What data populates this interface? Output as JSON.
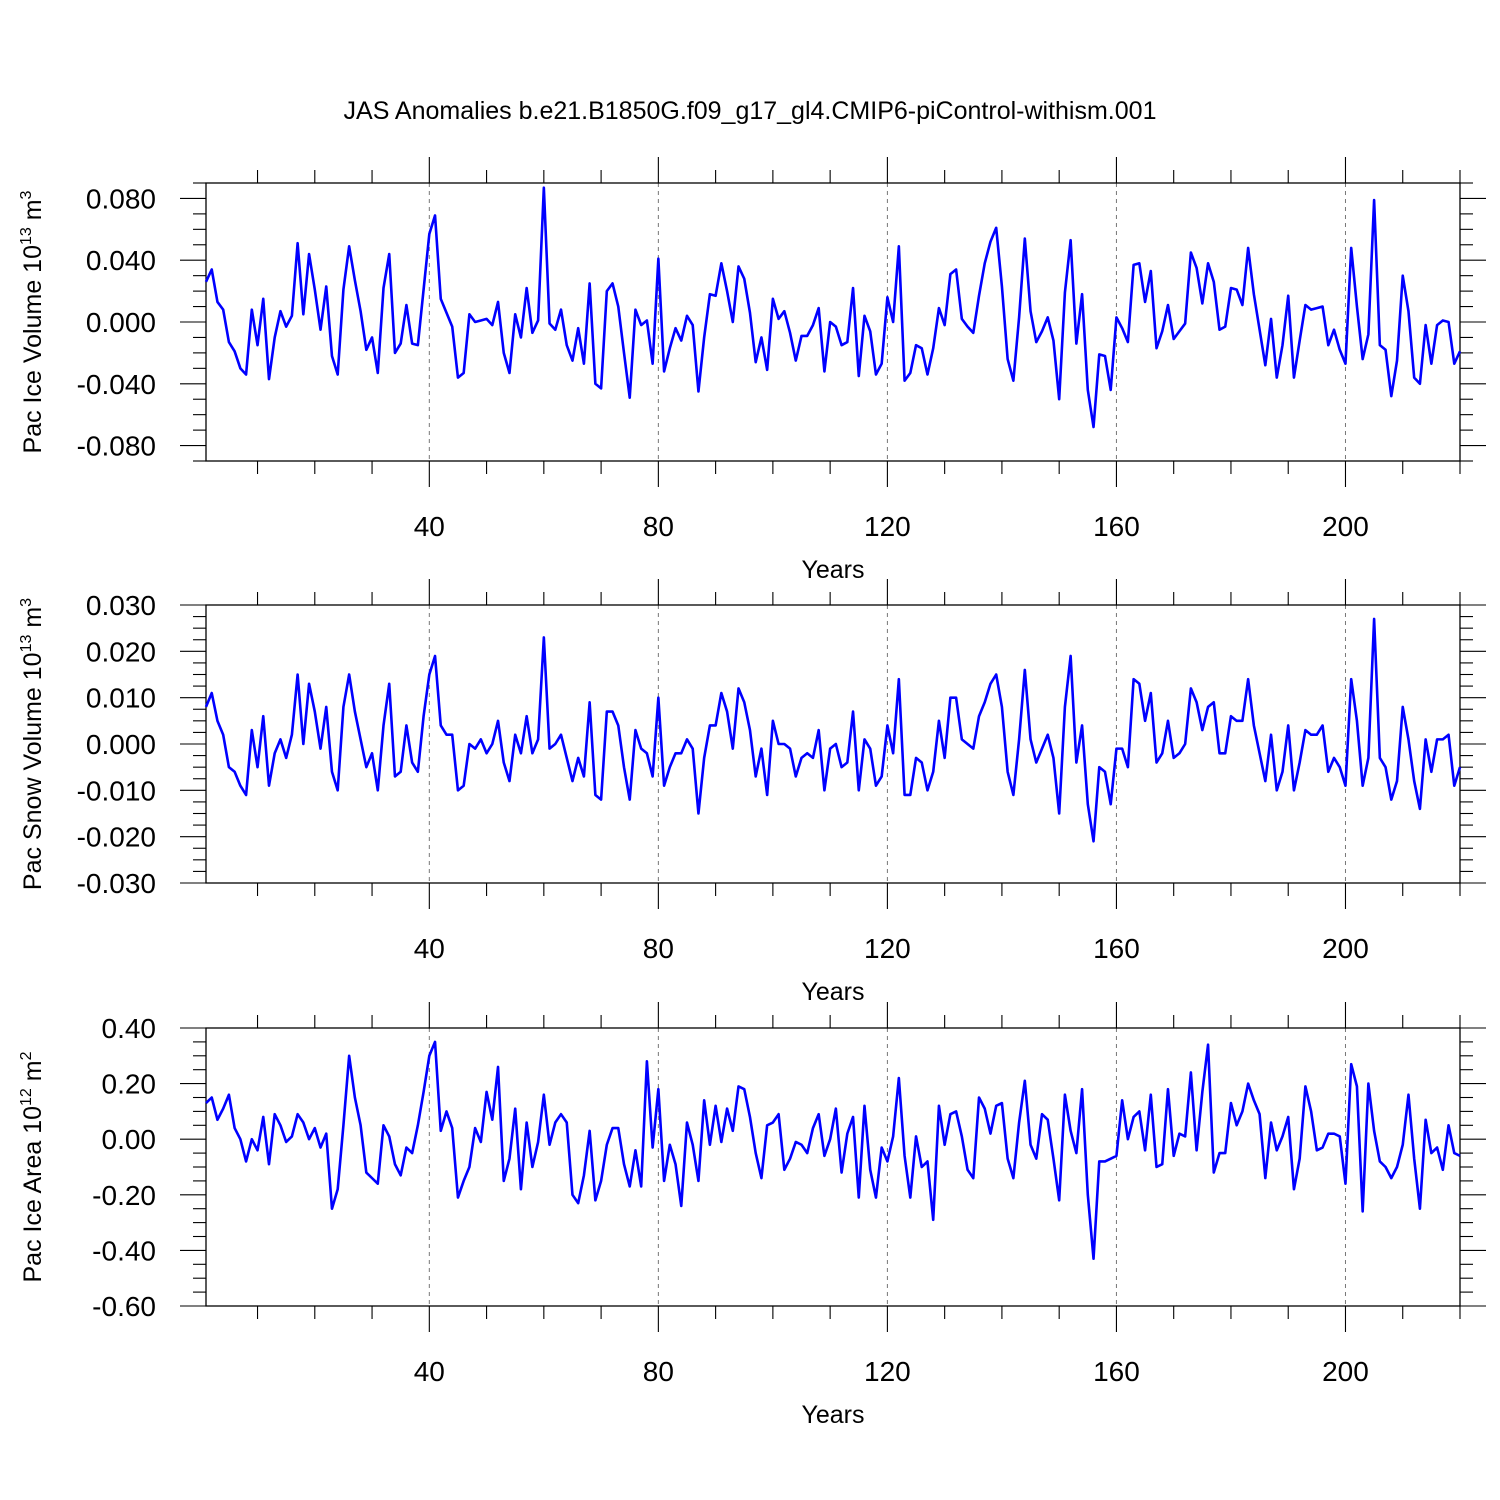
{
  "figure": {
    "title": "JAS Anomalies b.e21.B1850G.f09_g17_gl4.CMIP6-piControl-withism.001"
  },
  "chart_data": [
    {
      "type": "line",
      "title": "",
      "xlabel": "Years",
      "ylabel": {
        "base": "Pac Ice Volume 10",
        "exp": "13",
        "unit": " m",
        "unit_exp": "3"
      },
      "xlim": [
        1,
        220
      ],
      "ylim": [
        -0.09,
        0.09
      ],
      "xticks": [
        "40",
        "80",
        "120",
        "160",
        "200"
      ],
      "yticks": [
        "-0.080",
        "-0.040",
        "0.000",
        "0.040",
        "0.080"
      ],
      "grid": "dashed vertical at major x ticks",
      "color": "#0000ff",
      "series": [
        {
          "x_start": 1,
          "x_step": 1,
          "values": [
            0.026,
            0.034,
            0.013,
            0.008,
            -0.013,
            -0.019,
            -0.03,
            -0.034,
            0.008,
            -0.015,
            0.015,
            -0.037,
            -0.01,
            0.007,
            -0.003,
            0.004,
            0.051,
            0.005,
            0.044,
            0.021,
            -0.005,
            0.023,
            -0.022,
            -0.034,
            0.021,
            0.049,
            0.027,
            0.007,
            -0.018,
            -0.01,
            -0.033,
            0.022,
            0.044,
            -0.02,
            -0.014,
            0.011,
            -0.014,
            -0.015,
            0.021,
            0.057,
            0.069,
            0.015,
            0.006,
            -0.003,
            -0.036,
            -0.033,
            0.005,
            0.0,
            0.001,
            0.002,
            -0.002,
            0.013,
            -0.02,
            -0.033,
            0.005,
            -0.01,
            0.022,
            -0.007,
            0.001,
            0.087,
            -0.001,
            -0.005,
            0.008,
            -0.015,
            -0.025,
            -0.004,
            -0.027,
            0.025,
            -0.04,
            -0.043,
            0.02,
            0.025,
            0.01,
            -0.02,
            -0.049,
            0.008,
            -0.002,
            0.001,
            -0.027,
            0.041,
            -0.032,
            -0.017,
            -0.004,
            -0.012,
            0.004,
            -0.002,
            -0.045,
            -0.01,
            0.018,
            0.017,
            0.038,
            0.02,
            0.0,
            0.036,
            0.028,
            0.006,
            -0.026,
            -0.01,
            -0.031,
            0.015,
            0.002,
            0.007,
            -0.007,
            -0.025,
            -0.009,
            -0.009,
            -0.002,
            0.009,
            -0.032,
            0.0,
            -0.003,
            -0.015,
            -0.013,
            0.022,
            -0.035,
            0.004,
            -0.006,
            -0.034,
            -0.027,
            0.016,
            0.0,
            0.049,
            -0.038,
            -0.033,
            -0.015,
            -0.017,
            -0.034,
            -0.017,
            0.009,
            -0.002,
            0.031,
            0.034,
            0.002,
            -0.003,
            -0.007,
            0.017,
            0.038,
            0.052,
            0.061,
            0.023,
            -0.024,
            -0.038,
            0.003,
            0.054,
            0.007,
            -0.013,
            -0.006,
            0.003,
            -0.012,
            -0.05,
            0.019,
            0.053,
            -0.014,
            0.018,
            -0.044,
            -0.068,
            -0.021,
            -0.022,
            -0.044,
            0.003,
            -0.004,
            -0.013,
            0.037,
            0.038,
            0.013,
            0.033,
            -0.017,
            -0.006,
            0.011,
            -0.011,
            -0.006,
            -0.001,
            0.045,
            0.035,
            0.012,
            0.038,
            0.026,
            -0.005,
            -0.003,
            0.022,
            0.021,
            0.011,
            0.048,
            0.018,
            -0.005,
            -0.028,
            0.002,
            -0.036,
            -0.015,
            0.017,
            -0.036,
            -0.012,
            0.011,
            0.008,
            0.009,
            0.01,
            -0.015,
            -0.005,
            -0.018,
            -0.027,
            0.048,
            0.01,
            -0.024,
            -0.008,
            0.079,
            -0.015,
            -0.018,
            -0.048,
            -0.025,
            0.03,
            0.007,
            -0.036,
            -0.04,
            -0.002,
            -0.027,
            -0.002,
            0.001,
            0.0,
            -0.027,
            -0.019
          ]
        }
      ]
    },
    {
      "type": "line",
      "title": "",
      "xlabel": "Years",
      "ylabel": {
        "base": "Pac Snow Volume 10",
        "exp": "13",
        "unit": " m",
        "unit_exp": "3"
      },
      "xlim": [
        1,
        220
      ],
      "ylim": [
        -0.03,
        0.03
      ],
      "xticks": [
        "40",
        "80",
        "120",
        "160",
        "200"
      ],
      "yticks": [
        "-0.030",
        "-0.020",
        "-0.010",
        "0.000",
        "0.010",
        "0.020",
        "0.030"
      ],
      "grid": "dashed vertical at major x ticks",
      "color": "#0000ff",
      "series": [
        {
          "x_start": 1,
          "x_step": 1,
          "values": [
            0.008,
            0.011,
            0.005,
            0.002,
            -0.005,
            -0.006,
            -0.009,
            -0.011,
            0.003,
            -0.005,
            0.006,
            -0.009,
            -0.002,
            0.001,
            -0.003,
            0.002,
            0.015,
            0.0,
            0.013,
            0.007,
            -0.001,
            0.008,
            -0.006,
            -0.01,
            0.008,
            0.015,
            0.007,
            0.001,
            -0.005,
            -0.002,
            -0.01,
            0.004,
            0.013,
            -0.007,
            -0.006,
            0.004,
            -0.004,
            -0.006,
            0.006,
            0.015,
            0.019,
            0.004,
            0.002,
            0.002,
            -0.01,
            -0.009,
            0.0,
            -0.001,
            0.001,
            -0.002,
            0.0,
            0.005,
            -0.004,
            -0.008,
            0.002,
            -0.002,
            0.006,
            -0.002,
            0.001,
            0.023,
            -0.001,
            0.0,
            0.002,
            -0.003,
            -0.008,
            -0.003,
            -0.007,
            0.009,
            -0.011,
            -0.012,
            0.007,
            0.007,
            0.004,
            -0.005,
            -0.012,
            0.003,
            -0.001,
            -0.002,
            -0.007,
            0.01,
            -0.009,
            -0.005,
            -0.002,
            -0.002,
            0.001,
            -0.001,
            -0.015,
            -0.003,
            0.004,
            0.004,
            0.011,
            0.007,
            -0.001,
            0.012,
            0.009,
            0.003,
            -0.007,
            -0.001,
            -0.011,
            0.005,
            0.0,
            0.0,
            -0.001,
            -0.007,
            -0.003,
            -0.002,
            -0.003,
            0.003,
            -0.01,
            -0.001,
            0.0,
            -0.005,
            -0.004,
            0.007,
            -0.01,
            0.001,
            -0.001,
            -0.009,
            -0.007,
            0.004,
            -0.002,
            0.014,
            -0.011,
            -0.011,
            -0.003,
            -0.004,
            -0.01,
            -0.006,
            0.005,
            -0.003,
            0.01,
            0.01,
            0.001,
            0.0,
            -0.001,
            0.006,
            0.009,
            0.013,
            0.015,
            0.008,
            -0.006,
            -0.011,
            0.001,
            0.016,
            0.001,
            -0.004,
            -0.001,
            0.002,
            -0.003,
            -0.015,
            0.008,
            0.019,
            -0.004,
            0.004,
            -0.013,
            -0.021,
            -0.005,
            -0.006,
            -0.013,
            -0.001,
            -0.001,
            -0.005,
            0.014,
            0.013,
            0.005,
            0.011,
            -0.004,
            -0.002,
            0.005,
            -0.003,
            -0.002,
            0.0,
            0.012,
            0.009,
            0.003,
            0.008,
            0.009,
            -0.002,
            -0.002,
            0.006,
            0.005,
            0.005,
            0.014,
            0.004,
            -0.002,
            -0.008,
            0.002,
            -0.01,
            -0.006,
            0.004,
            -0.01,
            -0.004,
            0.003,
            0.002,
            0.002,
            0.004,
            -0.006,
            -0.003,
            -0.005,
            -0.009,
            0.014,
            0.005,
            -0.009,
            -0.003,
            0.027,
            -0.003,
            -0.005,
            -0.012,
            -0.008,
            0.008,
            0.001,
            -0.008,
            -0.014,
            0.001,
            -0.006,
            0.001,
            0.001,
            0.002,
            -0.009,
            -0.005
          ]
        }
      ]
    },
    {
      "type": "line",
      "title": "",
      "xlabel": "Years",
      "ylabel": {
        "base": "Pac Ice Area 10",
        "exp": "12",
        "unit": " m",
        "unit_exp": "2"
      },
      "xlim": [
        1,
        220
      ],
      "ylim": [
        -0.6,
        0.4
      ],
      "xticks": [
        "40",
        "80",
        "120",
        "160",
        "200"
      ],
      "yticks": [
        "-0.60",
        "-0.40",
        "-0.20",
        "0.00",
        "0.20",
        "0.40"
      ],
      "grid": "dashed vertical at major x ticks",
      "color": "#0000ff",
      "series": [
        {
          "x_start": 1,
          "x_step": 1,
          "values": [
            0.13,
            0.15,
            0.07,
            0.11,
            0.16,
            0.04,
            0.0,
            -0.08,
            0.0,
            -0.04,
            0.08,
            -0.09,
            0.09,
            0.05,
            -0.01,
            0.01,
            0.09,
            0.06,
            0.0,
            0.04,
            -0.03,
            0.02,
            -0.25,
            -0.18,
            0.05,
            0.3,
            0.15,
            0.05,
            -0.12,
            -0.14,
            -0.16,
            0.05,
            0.01,
            -0.09,
            -0.13,
            -0.03,
            -0.05,
            0.05,
            0.17,
            0.3,
            0.35,
            0.03,
            0.1,
            0.04,
            -0.21,
            -0.15,
            -0.1,
            0.04,
            -0.01,
            0.17,
            0.07,
            0.26,
            -0.15,
            -0.07,
            0.11,
            -0.18,
            0.06,
            -0.1,
            -0.01,
            0.16,
            -0.02,
            0.06,
            0.09,
            0.06,
            -0.2,
            -0.23,
            -0.13,
            0.03,
            -0.22,
            -0.15,
            -0.02,
            0.04,
            0.04,
            -0.09,
            -0.17,
            -0.04,
            -0.17,
            0.28,
            -0.03,
            0.18,
            -0.15,
            -0.02,
            -0.09,
            -0.24,
            0.06,
            -0.02,
            -0.15,
            0.14,
            -0.02,
            0.12,
            -0.01,
            0.11,
            0.03,
            0.19,
            0.18,
            0.08,
            -0.05,
            -0.14,
            0.05,
            0.06,
            0.09,
            -0.11,
            -0.07,
            -0.01,
            -0.02,
            -0.05,
            0.04,
            0.09,
            -0.06,
            0.0,
            0.11,
            -0.12,
            0.02,
            0.08,
            -0.21,
            0.12,
            -0.11,
            -0.21,
            -0.03,
            -0.08,
            0.01,
            0.22,
            -0.06,
            -0.21,
            0.01,
            -0.1,
            -0.08,
            -0.29,
            0.12,
            -0.02,
            0.09,
            0.1,
            0.01,
            -0.11,
            -0.14,
            0.15,
            0.11,
            0.02,
            0.12,
            0.13,
            -0.07,
            -0.14,
            0.06,
            0.21,
            -0.02,
            -0.07,
            0.09,
            0.07,
            -0.07,
            -0.22,
            0.16,
            0.03,
            -0.05,
            0.18,
            -0.2,
            -0.43,
            -0.08,
            -0.08,
            -0.07,
            -0.06,
            0.14,
            0.0,
            0.08,
            0.1,
            -0.04,
            0.16,
            -0.1,
            -0.09,
            0.18,
            -0.06,
            0.02,
            0.01,
            0.24,
            -0.04,
            0.17,
            0.34,
            -0.12,
            -0.05,
            -0.05,
            0.13,
            0.05,
            0.1,
            0.2,
            0.14,
            0.09,
            -0.14,
            0.06,
            -0.04,
            0.01,
            0.08,
            -0.18,
            -0.07,
            0.19,
            0.1,
            -0.04,
            -0.03,
            0.02,
            0.02,
            0.01,
            -0.16,
            0.27,
            0.19,
            -0.26,
            0.2,
            0.03,
            -0.08,
            -0.1,
            -0.14,
            -0.1,
            -0.02,
            0.16,
            -0.07,
            -0.25,
            0.07,
            -0.05,
            -0.03,
            -0.11,
            0.05,
            -0.05,
            -0.06
          ]
        }
      ]
    }
  ]
}
